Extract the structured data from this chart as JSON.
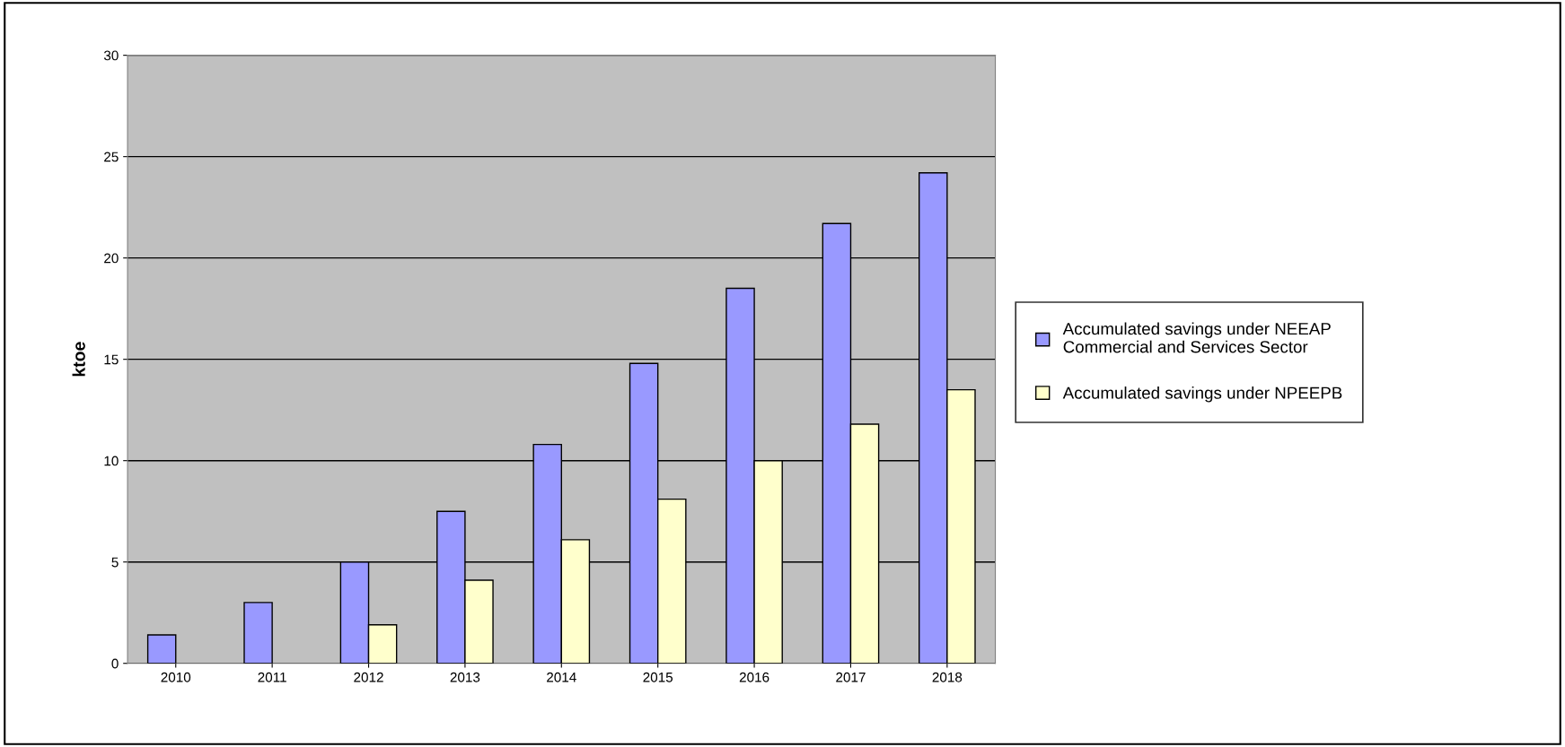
{
  "chart_data": {
    "type": "bar",
    "ylabel": "ktoe",
    "categories": [
      "2010",
      "2011",
      "2012",
      "2013",
      "2014",
      "2015",
      "2016",
      "2017",
      "2018"
    ],
    "series": [
      {
        "name": "Accumulated savings under NEEAP\nCommercial and Services Sector",
        "color": "#9999ff",
        "values": [
          1.4,
          3.0,
          5.0,
          7.5,
          10.8,
          14.8,
          18.5,
          21.7,
          24.2
        ]
      },
      {
        "name": "Accumulated savings under NPEEPB",
        "color": "#ffffcc",
        "values": [
          null,
          null,
          1.9,
          4.1,
          6.1,
          8.1,
          10.0,
          11.8,
          13.5
        ]
      }
    ],
    "ylim": [
      0,
      30
    ],
    "yticks": [
      0,
      5,
      10,
      15,
      20,
      25,
      30
    ],
    "grid": "y",
    "legend": "right"
  }
}
